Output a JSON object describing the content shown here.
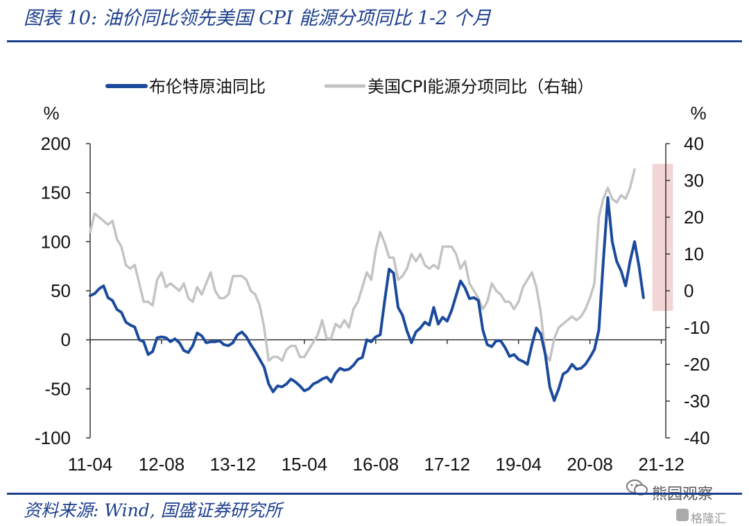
{
  "title": "图表 10:  油价同比领先美国 CPI 能源分项同比 1-2 个月",
  "source": "资料来源:  Wind,  国盛证券研究所",
  "watermark": {
    "text": "熊园观察",
    "sub": "格隆汇"
  },
  "chart_data": {
    "type": "line",
    "title": "",
    "x_tick_labels": [
      "11-04",
      "12-08",
      "13-12",
      "15-04",
      "16-08",
      "17-12",
      "19-04",
      "20-08",
      "21-12"
    ],
    "left_axis": {
      "unit": "%",
      "range": [
        -100,
        200
      ],
      "ticks": [
        200,
        150,
        100,
        50,
        0,
        -50,
        -100
      ]
    },
    "right_axis": {
      "unit": "%",
      "range": [
        -40,
        40
      ],
      "ticks": [
        40,
        30,
        20,
        10,
        0,
        -10,
        -20,
        -30,
        -40
      ]
    },
    "legend_position": "top",
    "grid": false,
    "highlight": {
      "from": "21-10",
      "to": "22-02",
      "color": "#efcaca"
    },
    "series": [
      {
        "name": "布伦特原油同比",
        "axis": "left",
        "color": "#1b4a9c",
        "start": "2011-04",
        "frequency": "monthly",
        "values": [
          45,
          47,
          52,
          55,
          43,
          40,
          31,
          28,
          18,
          15,
          13,
          0,
          -2,
          -15,
          -12,
          2,
          3,
          2,
          -2,
          1,
          -3,
          -11,
          -13,
          -6,
          7,
          4,
          -3,
          -2,
          -2,
          -1,
          -5,
          -6,
          -3,
          5,
          8,
          3,
          -5,
          -12,
          -20,
          -28,
          -45,
          -53,
          -47,
          -48,
          -45,
          -40,
          -43,
          -47,
          -52,
          -50,
          -45,
          -43,
          -40,
          -38,
          -43,
          -34,
          -29,
          -31,
          -30,
          -26,
          -20,
          -18,
          0,
          -2,
          3,
          5,
          40,
          72,
          68,
          33,
          25,
          9,
          -3,
          8,
          12,
          18,
          15,
          33,
          16,
          23,
          19,
          30,
          45,
          60,
          53,
          42,
          43,
          40,
          10,
          -5,
          -7,
          -1,
          -1,
          -8,
          -17,
          -15,
          -20,
          -22,
          -25,
          -5,
          12,
          6,
          -15,
          -48,
          -62,
          -50,
          -35,
          -32,
          -25,
          -30,
          -29,
          -25,
          -18,
          -10,
          10,
          80,
          145,
          100,
          80,
          70,
          55,
          80,
          100,
          75,
          43
        ]
      },
      {
        "name": "美国CPI能源分项同比（右轴）",
        "axis": "right",
        "color": "#c3c3c3",
        "start": "2011-04",
        "frequency": "monthly",
        "values": [
          16,
          21,
          20,
          19,
          18,
          19,
          14,
          12,
          7,
          6,
          7,
          2,
          -3,
          -3,
          -4,
          3,
          5,
          1,
          2,
          1,
          0,
          2,
          -2,
          -3,
          1,
          -1,
          2,
          5,
          0,
          -2,
          -2,
          -1,
          4,
          4,
          4,
          3,
          0,
          -1,
          -4,
          -10,
          -19,
          -18,
          -18,
          -19,
          -16,
          -15,
          -15,
          -18,
          -18,
          -16,
          -14,
          -12,
          -8,
          -13,
          -13,
          -9,
          -10,
          -8,
          -10,
          -5,
          -3,
          1,
          5,
          3,
          11,
          16,
          13,
          9,
          9,
          3,
          4,
          6,
          10,
          8,
          10,
          7,
          6,
          7,
          6,
          12,
          12,
          12,
          10,
          6,
          8,
          2,
          0,
          -2,
          -5,
          -3,
          2,
          0,
          -1,
          -3,
          -3,
          -5,
          -3,
          1,
          3,
          5,
          1,
          -6,
          -17,
          -19,
          -13,
          -10,
          -9,
          -8,
          -7,
          -8,
          -7,
          -5,
          -2,
          2,
          20,
          25,
          28,
          25,
          24,
          26,
          25,
          28,
          33
        ]
      }
    ]
  }
}
